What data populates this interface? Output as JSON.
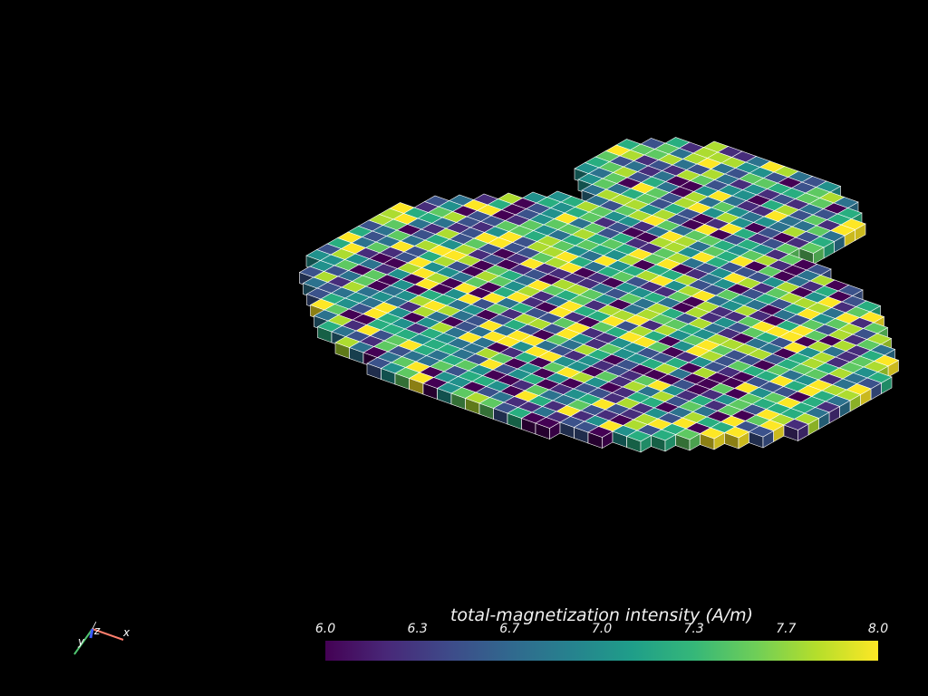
{
  "colorbar": {
    "title": "total-magnetization intensity (A/m)",
    "min": 6.0,
    "max": 8.0,
    "ticks": [
      "6.0",
      "6.3",
      "6.7",
      "7.0",
      "7.3",
      "7.7",
      "8.0"
    ],
    "colormap": "viridis"
  },
  "axes_widget": {
    "x_label": "x",
    "y_label": "y",
    "z_label": "z",
    "x_color": "#ff7f6e",
    "y_color": "#4fc46f",
    "z_color": "#3a5bff"
  },
  "scene": {
    "background": "#000000",
    "voxel_edge_color": "#ffffff"
  }
}
